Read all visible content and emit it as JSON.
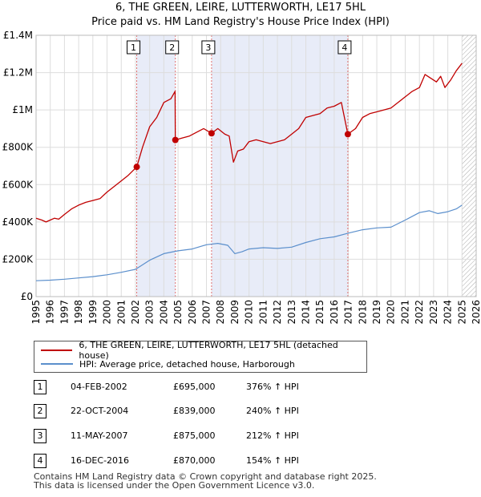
{
  "header": {
    "title": "6, THE GREEN, LEIRE, LUTTERWORTH, LE17 5HL",
    "subtitle": "Price paid vs. HM Land Registry's House Price Index (HPI)"
  },
  "colors": {
    "price_line": "#c00000",
    "hpi_line": "#5b8fcc",
    "shade": "#e8ecf8",
    "grid": "#dddddd",
    "vline": "#e07070",
    "hatch": "#aaaaaa"
  },
  "chart_data": {
    "type": "line",
    "title": "6, THE GREEN, LEIRE, LUTTERWORTH, LE17 5HL",
    "xlim": [
      1995,
      2026
    ],
    "ylim": [
      0,
      1400000
    ],
    "x_ticks": [
      "1995",
      "1996",
      "1997",
      "1998",
      "1999",
      "2000",
      "2001",
      "2002",
      "2003",
      "2004",
      "2005",
      "2006",
      "2007",
      "2008",
      "2009",
      "2010",
      "2011",
      "2012",
      "2013",
      "2014",
      "2015",
      "2016",
      "2017",
      "2018",
      "2019",
      "2020",
      "2021",
      "2022",
      "2023",
      "2024",
      "2025",
      "2026"
    ],
    "y_ticks": [
      {
        "value": 0,
        "label": "£0"
      },
      {
        "value": 200000,
        "label": "£200K"
      },
      {
        "value": 400000,
        "label": "£400K"
      },
      {
        "value": 600000,
        "label": "£600K"
      },
      {
        "value": 800000,
        "label": "£800K"
      },
      {
        "value": 1000000,
        "label": "£1M"
      },
      {
        "value": 1200000,
        "label": "£1.2M"
      },
      {
        "value": 1400000,
        "label": "£1.4M"
      }
    ],
    "grid": true,
    "shaded_ranges": [
      [
        2002.09,
        2004.81
      ],
      [
        2007.36,
        2016.96
      ]
    ],
    "hatched_from": 2025.0,
    "series": [
      {
        "name": "6, THE GREEN, LEIRE, LUTTERWORTH, LE17 5HL (detached house)",
        "x": [
          1995.0,
          1995.4,
          1995.7,
          1996.0,
          1996.3,
          1996.6,
          1997.0,
          1997.5,
          1998.0,
          1998.5,
          1999.0,
          1999.5,
          2000.0,
          2000.5,
          2001.0,
          2001.5,
          2002.09,
          2002.5,
          2003.0,
          2003.5,
          2004.0,
          2004.5,
          2004.79,
          2004.81,
          2005.3,
          2005.8,
          2006.3,
          2006.8,
          2007.36,
          2007.8,
          2008.3,
          2008.6,
          2008.9,
          2009.2,
          2009.6,
          2010.0,
          2010.5,
          2011.0,
          2011.5,
          2012.0,
          2012.5,
          2013.0,
          2013.5,
          2014.0,
          2014.5,
          2015.0,
          2015.5,
          2016.0,
          2016.5,
          2016.96,
          2017.5,
          2018.0,
          2018.5,
          2019.0,
          2019.5,
          2020.0,
          2020.5,
          2021.0,
          2021.5,
          2022.0,
          2022.4,
          2022.8,
          2023.2,
          2023.5,
          2023.8,
          2024.2,
          2024.6,
          2024.9,
          2025.0
        ],
        "y": [
          420000,
          410000,
          400000,
          410000,
          420000,
          415000,
          440000,
          470000,
          490000,
          505000,
          515000,
          525000,
          560000,
          590000,
          620000,
          650000,
          695000,
          800000,
          910000,
          960000,
          1040000,
          1060000,
          1100000,
          839000,
          850000,
          860000,
          880000,
          900000,
          875000,
          900000,
          870000,
          860000,
          720000,
          780000,
          790000,
          830000,
          840000,
          830000,
          820000,
          830000,
          840000,
          870000,
          900000,
          960000,
          970000,
          980000,
          1010000,
          1020000,
          1040000,
          870000,
          900000,
          960000,
          980000,
          990000,
          1000000,
          1010000,
          1040000,
          1070000,
          1100000,
          1120000,
          1190000,
          1170000,
          1150000,
          1180000,
          1120000,
          1160000,
          1210000,
          1240000,
          1250000
        ]
      },
      {
        "name": "HPI: Average price, detached house, Harborough",
        "x": [
          1995.0,
          1996.0,
          1997.0,
          1998.0,
          1999.0,
          2000.0,
          2001.0,
          2002.0,
          2003.0,
          2004.0,
          2005.0,
          2006.0,
          2007.0,
          2007.8,
          2008.5,
          2009.0,
          2009.5,
          2010.0,
          2011.0,
          2012.0,
          2013.0,
          2014.0,
          2015.0,
          2016.0,
          2017.0,
          2018.0,
          2019.0,
          2020.0,
          2021.0,
          2022.0,
          2022.7,
          2023.3,
          2024.0,
          2024.6,
          2025.0
        ],
        "y": [
          85000,
          88000,
          93000,
          100000,
          107000,
          117000,
          130000,
          146000,
          195000,
          230000,
          245000,
          255000,
          278000,
          285000,
          275000,
          230000,
          240000,
          255000,
          262000,
          258000,
          265000,
          290000,
          310000,
          320000,
          340000,
          358000,
          368000,
          372000,
          410000,
          450000,
          460000,
          445000,
          455000,
          470000,
          490000
        ]
      }
    ],
    "sales": [
      {
        "label": "1",
        "x": 2002.09,
        "price": 695000
      },
      {
        "label": "2",
        "x": 2004.81,
        "price": 839000
      },
      {
        "label": "3",
        "x": 2007.36,
        "price": 875000
      },
      {
        "label": "4",
        "x": 2016.96,
        "price": 870000
      }
    ]
  },
  "legend": {
    "price_label": "6, THE GREEN, LEIRE, LUTTERWORTH, LE17 5HL (detached house)",
    "hpi_label": "HPI: Average price, detached house, Harborough"
  },
  "transactions": [
    {
      "num": "1",
      "date": "04-FEB-2002",
      "price": "£695,000",
      "hpi": "376% ↑ HPI"
    },
    {
      "num": "2",
      "date": "22-OCT-2004",
      "price": "£839,000",
      "hpi": "240% ↑ HPI"
    },
    {
      "num": "3",
      "date": "11-MAY-2007",
      "price": "£875,000",
      "hpi": "212% ↑ HPI"
    },
    {
      "num": "4",
      "date": "16-DEC-2016",
      "price": "£870,000",
      "hpi": "154% ↑ HPI"
    }
  ],
  "footer": {
    "line1": "Contains HM Land Registry data © Crown copyright and database right 2025.",
    "line2": "This data is licensed under the Open Government Licence v3.0."
  }
}
